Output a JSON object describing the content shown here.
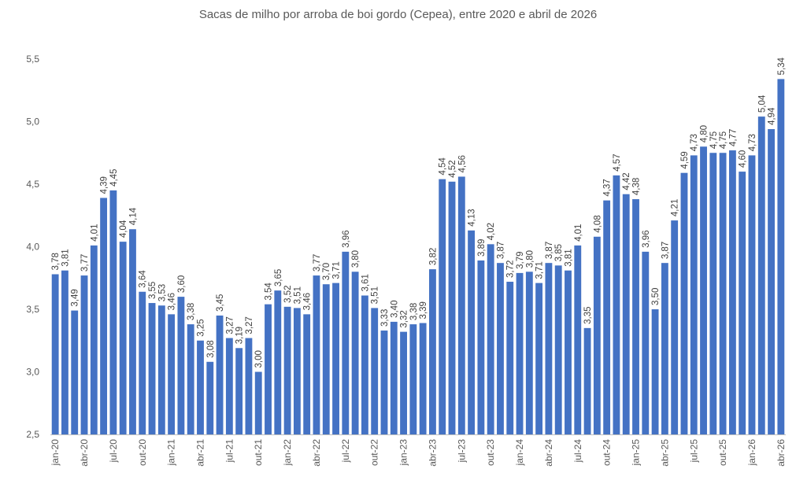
{
  "chart_data": {
    "type": "bar",
    "title": "Sacas de milho por arroba de boi gordo (Cepea), entre 2020 e abril de 2026",
    "xlabel": "",
    "ylabel": "",
    "ylim": [
      2.5,
      5.5
    ],
    "ytick_labels": [
      "2,5",
      "3,0",
      "3,5",
      "4,0",
      "4,5",
      "5,0",
      "5,5"
    ],
    "grid": false,
    "legend": "none",
    "bar_color": "#4472C4",
    "categories": [
      "jan-20",
      "fev-20",
      "mar-20",
      "abr-20",
      "mai-20",
      "jun-20",
      "jul-20",
      "ago-20",
      "set-20",
      "out-20",
      "nov-20",
      "dez-20",
      "jan-21",
      "fev-21",
      "mar-21",
      "abr-21",
      "mai-21",
      "jun-21",
      "jul-21",
      "ago-21",
      "set-21",
      "out-21",
      "nov-21",
      "dez-21",
      "jan-22",
      "fev-22",
      "mar-22",
      "abr-22",
      "mai-22",
      "jun-22",
      "jul-22",
      "ago-22",
      "set-22",
      "out-22",
      "nov-22",
      "dez-22",
      "jan-23",
      "fev-23",
      "mar-23",
      "abr-23",
      "mai-23",
      "jun-23",
      "jul-23",
      "ago-23",
      "set-23",
      "out-23",
      "nov-23",
      "dez-23",
      "jan-24",
      "fev-24",
      "mar-24",
      "abr-24",
      "mai-24",
      "jun-24",
      "jul-24",
      "ago-24",
      "set-24",
      "out-24",
      "nov-24",
      "dez-24",
      "jan-25",
      "fev-25",
      "mar-25",
      "abr-25",
      "mai-25",
      "jun-25",
      "jul-25",
      "ago-25",
      "set-25",
      "out-25",
      "nov-25",
      "dez-25",
      "jan-26",
      "fev-26",
      "mar-26",
      "abr-26"
    ],
    "xtick_labels": [
      "jan-20",
      "",
      "",
      "abr-20",
      "",
      "",
      "jul-20",
      "",
      "",
      "out-20",
      "",
      "",
      "jan-21",
      "",
      "",
      "abr-21",
      "",
      "",
      "jul-21",
      "",
      "",
      "out-21",
      "",
      "",
      "jan-22",
      "",
      "",
      "abr-22",
      "",
      "",
      "jul-22",
      "",
      "",
      "out-22",
      "",
      "",
      "jan-23",
      "",
      "",
      "abr-23",
      "",
      "",
      "jul-23",
      "",
      "",
      "out-23",
      "",
      "",
      "jan-24",
      "",
      "",
      "abr-24",
      "",
      "",
      "jul-24",
      "",
      "",
      "out-24",
      "",
      "",
      "jan-25",
      "",
      "",
      "abr-25",
      "",
      "",
      "jul-25",
      "",
      "",
      "out-25",
      "",
      "",
      "jan-26",
      "",
      "",
      "abr-26"
    ],
    "values": [
      3.78,
      3.81,
      3.49,
      3.77,
      4.01,
      4.39,
      4.45,
      4.04,
      4.14,
      3.64,
      3.55,
      3.53,
      3.46,
      3.6,
      3.38,
      3.25,
      3.08,
      3.45,
      3.27,
      3.19,
      3.27,
      3.0,
      3.54,
      3.65,
      3.52,
      3.51,
      3.46,
      3.77,
      3.7,
      3.71,
      3.96,
      3.8,
      3.61,
      3.51,
      3.33,
      3.4,
      3.32,
      3.38,
      3.39,
      3.82,
      4.54,
      4.52,
      4.56,
      4.13,
      3.89,
      4.02,
      3.87,
      3.72,
      3.79,
      3.8,
      3.71,
      3.87,
      3.85,
      3.81,
      4.01,
      3.35,
      4.08,
      4.37,
      4.57,
      4.42,
      4.38,
      3.96,
      3.5,
      3.87,
      4.21,
      4.59,
      4.73,
      4.8,
      4.75,
      4.75,
      4.77,
      4.6,
      4.73,
      5.04,
      4.94,
      5.34
    ],
    "value_labels": [
      "3,78",
      "3,81",
      "3,49",
      "3,77",
      "4,01",
      "4,39",
      "4,45",
      "4,04",
      "4,14",
      "3,64",
      "3,55",
      "3,53",
      "3,46",
      "3,60",
      "3,38",
      "3,25",
      "3,08",
      "3,45",
      "3,27",
      "3,19",
      "3,27",
      "3,00",
      "3,54",
      "3,65",
      "3,52",
      "3,51",
      "3,46",
      "3,77",
      "3,70",
      "3,71",
      "3,96",
      "3,80",
      "3,61",
      "3,51",
      "3,33",
      "3,40",
      "3,32",
      "3,38",
      "3,39",
      "3,82",
      "4,54",
      "4,52",
      "4,56",
      "4,13",
      "3,89",
      "4,02",
      "3,87",
      "3,72",
      "3,79",
      "3,80",
      "3,71",
      "3,87",
      "3,85",
      "3,81",
      "4,01",
      "3,35",
      "4,08",
      "4,37",
      "4,57",
      "4,42",
      "4,38",
      "3,96",
      "3,50",
      "3,87",
      "4,21",
      "4,59",
      "4,73",
      "4,80",
      "4,75",
      "4,75",
      "4,77",
      "4,60",
      "4,73",
      "5,04",
      "4,94",
      "5,34"
    ]
  }
}
